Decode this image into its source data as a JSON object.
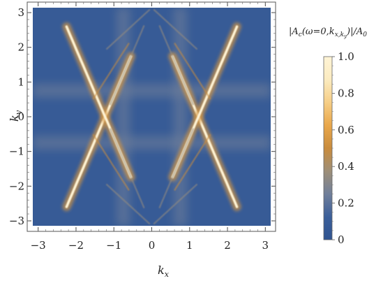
{
  "chart_data": [
    {
      "type": "heatmap",
      "title": "",
      "xlabel_base": "k",
      "xlabel_sub": "x",
      "ylabel_base": "k",
      "ylabel_sub": "y",
      "xlim": [
        -3.14159,
        3.14159
      ],
      "ylim": [
        -3.14159,
        3.14159
      ],
      "x_ticks": [
        -3,
        -2,
        -1,
        0,
        1,
        2,
        3
      ],
      "y_ticks": [
        3,
        2,
        1,
        0,
        -1,
        -2,
        -3
      ],
      "x_tick_labels": [
        "−3",
        "−2",
        "−1",
        "0",
        "1",
        "2",
        "3"
      ],
      "y_tick_labels": [
        "3",
        "2",
        "1",
        "0",
        "−1",
        "−2",
        "−3"
      ],
      "grid": false,
      "colormap": "blue-orange-cream",
      "background_value": 0.08,
      "features": [
        {
          "name": "primary arc",
          "ky_formula": "pi - 2.55*|kx|",
          "kx_range": [
            0.55,
            2.25
          ],
          "peak_value": 1.0
        },
        {
          "name": "secondary arc",
          "ky_formula": "pi - 1.70*|kx|",
          "kx_range": [
            0.6,
            1.55
          ],
          "peak_value": 0.35
        },
        {
          "name": "inner arc",
          "ky_formula": "pi - 2.55*|kx|",
          "kx_range": [
            0.2,
            1.1
          ],
          "peak_value": 0.2
        },
        {
          "name": "diagonal",
          "ky_formula": "pi - |kx|",
          "kx_range": [
            0.05,
            1.2
          ],
          "peak_value": 0.2
        },
        {
          "name": "horizontal band",
          "ky_formula": "0.75",
          "kx_range": [
            0,
            3.14
          ],
          "peak_value": 0.25
        },
        {
          "name": "vertical band",
          "kx_formula": "0.75",
          "ky_range": [
            0,
            3.14
          ],
          "peak_value": 0.25
        }
      ]
    },
    {
      "type": "colorbar",
      "title_parts": [
        "|A",
        "c",
        "(ω=0,k",
        "x,k",
        "y",
        ")|/A",
        "0"
      ],
      "range": [
        0,
        1
      ],
      "ticks": [
        0,
        0.2,
        0.4,
        0.6,
        0.8,
        1.0
      ],
      "tick_labels": [
        "0",
        "0.2",
        "0.4",
        "0.6",
        "0.8",
        "1.0"
      ],
      "colors": [
        "#2f5390",
        "#3b5f9a",
        "#707f9a",
        "#9e8f78",
        "#c98c3d",
        "#e9a74a",
        "#f6ce86",
        "#fbebc0",
        "#fff4d6"
      ]
    }
  ]
}
